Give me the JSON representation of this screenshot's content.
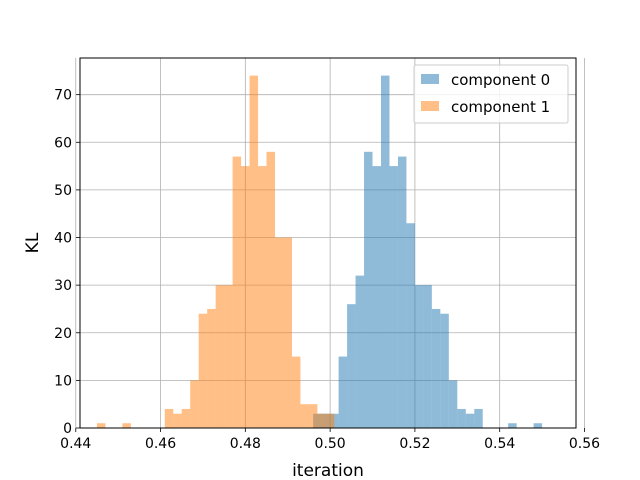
{
  "chart_data": {
    "type": "bar",
    "title": "",
    "xlabel": "iteration",
    "ylabel": "KL",
    "xlim": [
      0.441,
      0.558
    ],
    "ylim": [
      0,
      77.7
    ],
    "xticks": [
      0.44,
      0.46,
      0.48,
      0.5,
      0.52,
      0.54,
      0.56
    ],
    "xtick_labels": [
      "0.44",
      "0.46",
      "0.48",
      "0.50",
      "0.52",
      "0.54",
      "0.56"
    ],
    "yticks": [
      0,
      10,
      20,
      30,
      40,
      50,
      60,
      70
    ],
    "ytick_labels": [
      "0",
      "10",
      "20",
      "30",
      "40",
      "50",
      "60",
      "70"
    ],
    "grid": true,
    "legend_position": "top-right",
    "bin_width": 0.002,
    "series": [
      {
        "name": "component 0",
        "color": "#1f77b4",
        "alpha": 0.5,
        "bin_start": 0.496,
        "counts": [
          3,
          3,
          3,
          15,
          26,
          32,
          58,
          55,
          74,
          55,
          57,
          43,
          30,
          30,
          25,
          24,
          10,
          4,
          3,
          4,
          0,
          0,
          0,
          1,
          0,
          0,
          1
        ]
      },
      {
        "name": "component 1",
        "color": "#ff7f0e",
        "alpha": 0.5,
        "bin_start": 0.445,
        "counts": [
          1,
          0,
          0,
          1,
          0,
          0,
          0,
          0,
          4,
          3,
          4,
          10,
          24,
          25,
          30,
          30,
          57,
          55,
          74,
          55,
          58,
          40,
          40,
          15,
          5,
          5,
          3,
          3
        ]
      }
    ]
  }
}
